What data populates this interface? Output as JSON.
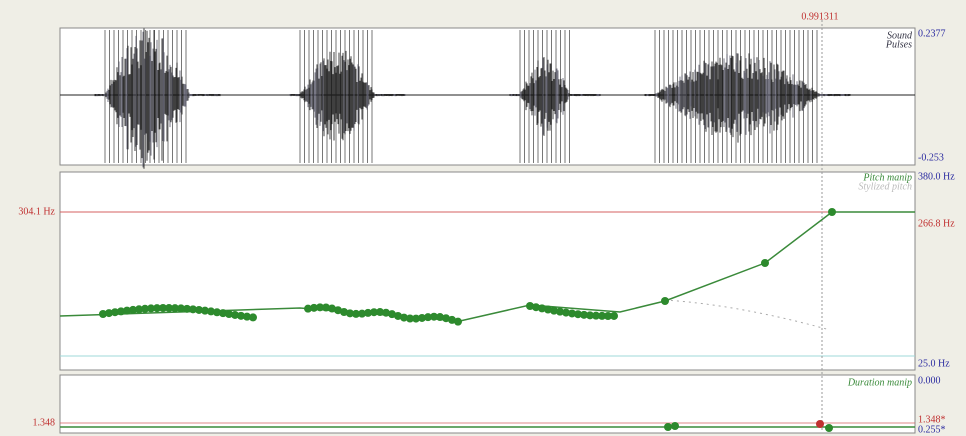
{
  "cursor": "0.991311",
  "sound": {
    "labels": [
      "Sound",
      "Pulses"
    ],
    "top": "0.2377",
    "bottom": "-0.253"
  },
  "pitch": {
    "labels": [
      "Pitch manip",
      "Stylized pitch"
    ],
    "top": "380.0 Hz",
    "bottom": "25.0 Hz",
    "left_marker": "304.1 Hz",
    "right_marker": "266.8 Hz"
  },
  "duration": {
    "label": "Duration manip",
    "top": "0.000",
    "left_marker": "1.348",
    "right_upper": "1.348*",
    "right_lower": "0.255*"
  }
}
